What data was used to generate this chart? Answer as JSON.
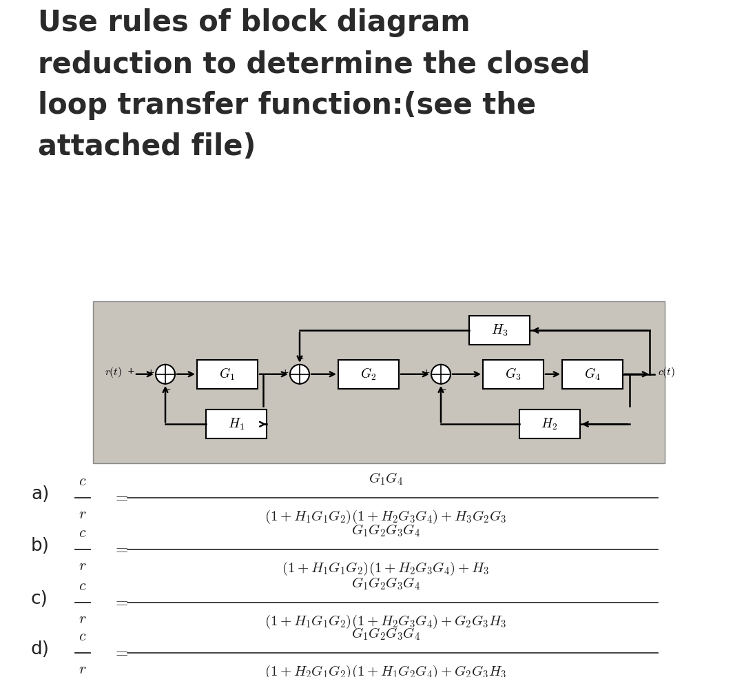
{
  "title_lines": [
    "Use rules of block diagram",
    "reduction to determine the closed",
    "loop transfer function:(see the",
    "attached file)"
  ],
  "title_fontsize": 30,
  "title_color": "#2a2a2a",
  "bg_color": "#ffffff",
  "diagram_bg": "#c8c4bc",
  "answer_a_num": "$G_1G_4$",
  "answer_a_den": "$(1+H_1G_1G_2)(1+H_2G_3G_4)+H_3G_2G_3$",
  "answer_b_num": "$G_1G_2G_3G_4$",
  "answer_b_den": "$(1+H_1G_1G_2)(1+H_2G_3G_4)+H_3$",
  "answer_c_num": "$G_1G_2G_3G_4$",
  "answer_c_den": "$(1+H_1G_1G_2)(1+H_2G_3G_4)+G_2G_3H_3$",
  "answer_d_num": "$G_1G_2G_3G_4$",
  "answer_d_den": "$(1+H_2G_1G_2)(1+H_1G_2G_4)+G_2G_3H_3$",
  "labels": [
    "a)",
    "b)",
    "c)",
    "d)"
  ]
}
